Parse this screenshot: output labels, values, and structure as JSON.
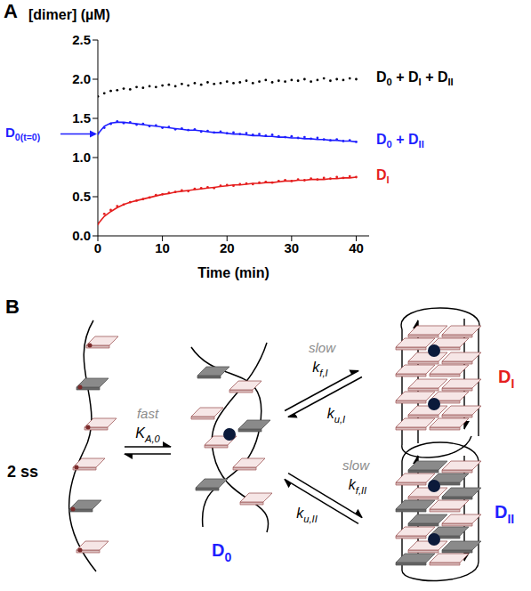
{
  "chart_data": {
    "type": "scatter",
    "panel": "A",
    "x_label": "Time (min)",
    "y_label": "[dimer] (µM)",
    "xlim": [
      0,
      42
    ],
    "xticks": [
      0,
      10,
      20,
      30,
      40
    ],
    "ylim": [
      0,
      2.5
    ],
    "yticks": [
      {
        "value": 0,
        "label": "0.0"
      },
      0.5,
      {
        "value": 1,
        "label": "1.0"
      },
      1.5,
      {
        "value": 2,
        "label": "2.0"
      },
      2.5
    ],
    "grid": false,
    "x": [
      0,
      1,
      2,
      3,
      4,
      5,
      6,
      7,
      8,
      9,
      10,
      11,
      12,
      13,
      14,
      15,
      16,
      17,
      18,
      19,
      20,
      21,
      22,
      23,
      24,
      25,
      26,
      27,
      28,
      29,
      30,
      31,
      32,
      33,
      34,
      35,
      36,
      37,
      38,
      39,
      40
    ],
    "series": [
      {
        "name": "D0 + DI + DII",
        "color": "#000000",
        "marker": "o",
        "values": [
          1.78,
          1.82,
          1.85,
          1.86,
          1.88,
          1.87,
          1.9,
          1.89,
          1.91,
          1.9,
          1.92,
          1.93,
          1.91,
          1.94,
          1.92,
          1.95,
          1.93,
          1.96,
          1.94,
          1.95,
          1.97,
          1.95,
          1.96,
          1.98,
          1.95,
          1.97,
          1.99,
          1.96,
          1.98,
          1.97,
          1.99,
          1.98,
          2.0,
          1.97,
          1.99,
          2.01,
          1.98,
          2.0,
          1.99,
          2.01,
          2.0
        ]
      },
      {
        "name": "D0 + DII",
        "color": "#1f1fff",
        "marker": "o",
        "values": [
          1.3,
          1.38,
          1.43,
          1.46,
          1.44,
          1.45,
          1.42,
          1.43,
          1.4,
          1.41,
          1.38,
          1.39,
          1.36,
          1.37,
          1.35,
          1.36,
          1.33,
          1.34,
          1.32,
          1.33,
          1.31,
          1.32,
          1.3,
          1.31,
          1.29,
          1.3,
          1.28,
          1.29,
          1.27,
          1.26,
          1.27,
          1.25,
          1.26,
          1.24,
          1.25,
          1.23,
          1.22,
          1.23,
          1.21,
          1.22,
          1.2
        ],
        "fit": [
          1.3,
          1.4,
          1.44,
          1.45,
          1.45,
          1.44,
          1.43,
          1.42,
          1.41,
          1.4,
          1.39,
          1.38,
          1.37,
          1.36,
          1.35,
          1.35,
          1.34,
          1.33,
          1.32,
          1.32,
          1.31,
          1.3,
          1.3,
          1.29,
          1.28,
          1.28,
          1.27,
          1.27,
          1.26,
          1.26,
          1.25,
          1.25,
          1.24,
          1.24,
          1.23,
          1.23,
          1.22,
          1.22,
          1.21,
          1.21,
          1.2
        ]
      },
      {
        "name": "DI",
        "color": "#e51e1e",
        "marker": "o",
        "values": [
          0.15,
          0.28,
          0.33,
          0.38,
          0.4,
          0.43,
          0.45,
          0.47,
          0.49,
          0.52,
          0.53,
          0.55,
          0.56,
          0.58,
          0.57,
          0.6,
          0.61,
          0.62,
          0.61,
          0.64,
          0.65,
          0.64,
          0.66,
          0.67,
          0.66,
          0.68,
          0.69,
          0.68,
          0.7,
          0.71,
          0.7,
          0.72,
          0.71,
          0.73,
          0.72,
          0.74,
          0.73,
          0.75,
          0.74,
          0.76,
          0.75
        ],
        "fit": [
          0.15,
          0.25,
          0.31,
          0.36,
          0.4,
          0.43,
          0.45,
          0.47,
          0.49,
          0.51,
          0.53,
          0.54,
          0.56,
          0.57,
          0.58,
          0.59,
          0.6,
          0.61,
          0.62,
          0.63,
          0.64,
          0.65,
          0.65,
          0.66,
          0.67,
          0.67,
          0.68,
          0.68,
          0.69,
          0.7,
          0.7,
          0.71,
          0.71,
          0.72,
          0.72,
          0.72,
          0.73,
          0.73,
          0.74,
          0.74,
          0.75
        ]
      }
    ],
    "annotations": [
      {
        "text": "D0(t=0)",
        "x": 0,
        "y": 1.3,
        "color": "#1f1fff"
      }
    ]
  },
  "diagram": {
    "label": "B",
    "nodes": [
      {
        "label": "2 ss",
        "color": "#000000"
      },
      {
        "label": "D0",
        "color": "#1f1fff"
      },
      {
        "label": "DI",
        "color": "#e51e1e"
      },
      {
        "label": "DII",
        "color": "#1f1fff"
      }
    ],
    "edges": [
      {
        "from": 0,
        "to": 1,
        "speed": "fast",
        "constant": "KA,0"
      },
      {
        "from": 1,
        "to": 2,
        "speed": "slow",
        "forward": "kf,I",
        "reverse": "ku,I"
      },
      {
        "from": 1,
        "to": 3,
        "speed": "slow",
        "forward": "kf,II",
        "reverse": "ku,II"
      }
    ]
  }
}
